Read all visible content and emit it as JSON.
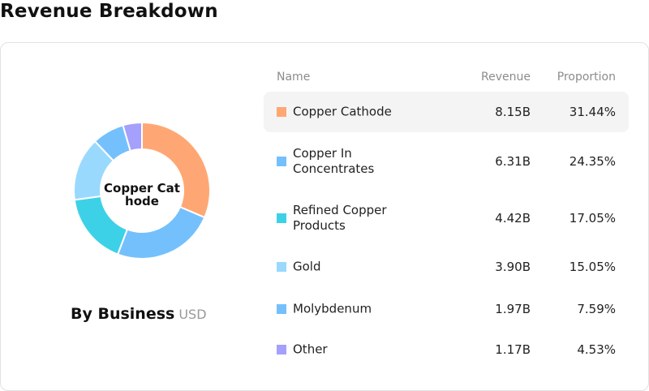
{
  "page": {
    "title": "Revenue Breakdown"
  },
  "donut": {
    "center_label": "Copper Cathode",
    "footer_title": "By Business",
    "footer_unit": "USD"
  },
  "table": {
    "headers": {
      "name": "Name",
      "revenue": "Revenue",
      "proportion": "Proportion"
    },
    "active_row": 0
  },
  "chart_data": {
    "type": "pie",
    "variant": "donut",
    "title": "By Business",
    "unit": "USD",
    "categories": [
      "Copper Cathode",
      "Copper In Concentrates",
      "Refined Copper Products",
      "Gold",
      "Molybdenum",
      "Other"
    ],
    "revenue_labels": [
      "8.15B",
      "6.31B",
      "4.42B",
      "3.90B",
      "1.97B",
      "1.17B"
    ],
    "values": [
      8.15,
      6.31,
      4.42,
      3.9,
      1.97,
      1.17
    ],
    "proportion_labels": [
      "31.44%",
      "24.35%",
      "17.05%",
      "15.05%",
      "7.59%",
      "4.53%"
    ],
    "proportions": [
      31.44,
      24.35,
      17.05,
      15.05,
      7.59,
      4.53
    ],
    "colors": [
      "#FFA774",
      "#74C0FC",
      "#3DD1E7",
      "#99D9FD",
      "#74C0FC",
      "#A5A0FC"
    ]
  }
}
